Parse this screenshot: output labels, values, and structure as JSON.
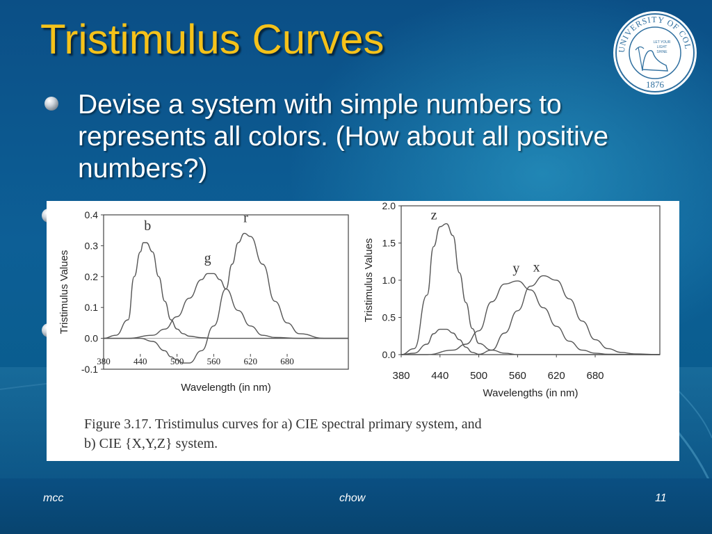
{
  "slide": {
    "title": "Tristimulus Curves",
    "bullet": "Devise a system with simple numbers to represents all colors. (How about all positive numbers?)",
    "caption_line1": "Figure 3.17. Tristimulus curves for a) CIE spectral primary system, and",
    "caption_line2": "b) CIE {X,Y,Z} system.",
    "seal_text": "UNIVERSITY OF COLORADO",
    "seal_year": "1876",
    "seal_motto": [
      "LET YOUR",
      "LIGHT",
      "SHINE"
    ],
    "footer_left": "mcc",
    "footer_center": "chow",
    "footer_right": "11"
  },
  "colors": {
    "title": "#f5c21a",
    "background": "#0b5a92",
    "curve": "#555555"
  },
  "chart_data": [
    {
      "type": "line",
      "title": "",
      "xlabel": "Wavelength (in nm)",
      "ylabel": "Tristimulus Values",
      "xlim": [
        380,
        780
      ],
      "ylim": [
        -0.1,
        0.4
      ],
      "xticks": [
        "380",
        "440",
        "500",
        "560",
        "620",
        "680"
      ],
      "yticks": [
        "0.4",
        "0.3",
        "0.2",
        "0.1",
        "0.0",
        "-0.1"
      ],
      "series": [
        {
          "name": "b",
          "x": [
            380,
            400,
            420,
            430,
            440,
            445,
            450,
            460,
            470,
            480,
            490,
            500,
            510,
            520,
            540,
            560,
            600,
            640,
            680,
            720,
            780
          ],
          "values": [
            0.0,
            0.01,
            0.06,
            0.2,
            0.28,
            0.31,
            0.31,
            0.28,
            0.2,
            0.12,
            0.06,
            0.03,
            0.015,
            0.007,
            0.002,
            0.0,
            0.0,
            0.0,
            0.0,
            0.0,
            0.0
          ]
        },
        {
          "name": "g",
          "x": [
            380,
            420,
            460,
            480,
            500,
            520,
            540,
            550,
            560,
            570,
            580,
            600,
            620,
            640,
            660,
            700,
            780
          ],
          "values": [
            0.0,
            0.0,
            0.01,
            0.03,
            0.07,
            0.13,
            0.19,
            0.21,
            0.21,
            0.19,
            0.16,
            0.09,
            0.04,
            0.01,
            0.003,
            0.0,
            0.0
          ]
        },
        {
          "name": "r",
          "x": [
            380,
            440,
            460,
            480,
            490,
            500,
            510,
            520,
            540,
            560,
            580,
            590,
            600,
            610,
            620,
            640,
            660,
            680,
            700,
            740,
            780
          ],
          "values": [
            0.0,
            0.0,
            -0.01,
            -0.04,
            -0.06,
            -0.07,
            -0.08,
            -0.08,
            -0.04,
            0.04,
            0.16,
            0.24,
            0.31,
            0.34,
            0.33,
            0.24,
            0.12,
            0.05,
            0.015,
            0.0,
            0.0
          ]
        }
      ]
    },
    {
      "type": "line",
      "title": "",
      "xlabel": "Wavelengths (in nm)",
      "ylabel": "Tristimulus Values",
      "xlim": [
        380,
        780
      ],
      "ylim": [
        0.0,
        2.0
      ],
      "xticks": [
        "380",
        "440",
        "500",
        "560",
        "620",
        "680"
      ],
      "yticks": [
        "2.0",
        "1.5",
        "1.0",
        "0.5",
        "0.0"
      ],
      "series": [
        {
          "name": "z",
          "x": [
            380,
            400,
            420,
            430,
            440,
            450,
            460,
            470,
            480,
            490,
            500,
            520,
            540,
            560,
            600,
            700,
            780
          ],
          "values": [
            0.0,
            0.08,
            0.8,
            1.45,
            1.72,
            1.76,
            1.6,
            1.1,
            0.7,
            0.35,
            0.15,
            0.06,
            0.02,
            0.0,
            0.0,
            0.0,
            0.0
          ]
        },
        {
          "name": "x",
          "x": [
            380,
            400,
            420,
            430,
            440,
            450,
            460,
            470,
            480,
            490,
            500,
            520,
            540,
            560,
            580,
            600,
            620,
            640,
            660,
            680,
            700,
            720,
            740,
            780
          ],
          "values": [
            0.0,
            0.02,
            0.14,
            0.28,
            0.34,
            0.34,
            0.29,
            0.2,
            0.1,
            0.03,
            0.005,
            0.06,
            0.29,
            0.59,
            0.92,
            1.06,
            1.0,
            0.75,
            0.45,
            0.2,
            0.08,
            0.03,
            0.01,
            0.0
          ]
        },
        {
          "name": "y",
          "x": [
            380,
            420,
            460,
            480,
            500,
            520,
            540,
            560,
            580,
            600,
            620,
            640,
            660,
            680,
            700,
            780
          ],
          "values": [
            0.0,
            0.0,
            0.06,
            0.14,
            0.32,
            0.71,
            0.95,
            0.99,
            0.87,
            0.63,
            0.38,
            0.18,
            0.06,
            0.02,
            0.005,
            0.0
          ]
        }
      ]
    }
  ]
}
